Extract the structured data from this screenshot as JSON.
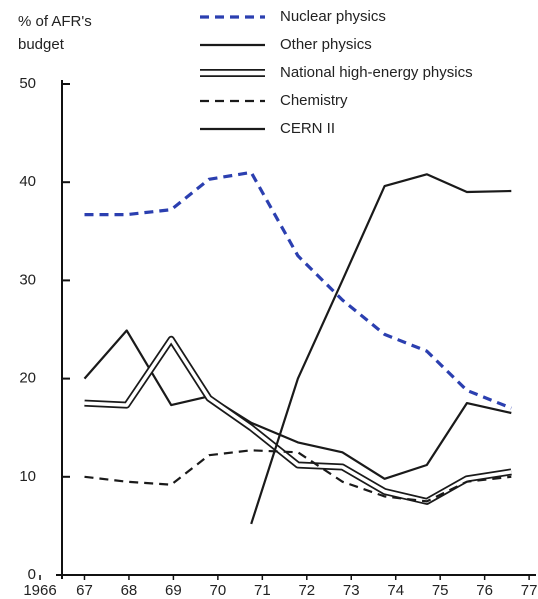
{
  "chart_data": {
    "type": "line",
    "ylabel": [
      "% of AFR's",
      "budget"
    ],
    "x": [
      1967.0,
      1967.95,
      1968.95,
      1969.8,
      1970.75,
      1971.8,
      1972.8,
      1973.75,
      1974.7,
      1975.6,
      1976.6
    ],
    "xlim": [
      1965.1,
      1977.2
    ],
    "xticks": [
      {
        "value": 1966,
        "label": "1966"
      },
      {
        "value": 1967,
        "label": "67"
      },
      {
        "value": 1968,
        "label": "68"
      },
      {
        "value": 1969,
        "label": "69"
      },
      {
        "value": 1970,
        "label": "70"
      },
      {
        "value": 1971,
        "label": "71"
      },
      {
        "value": 1972,
        "label": "72"
      },
      {
        "value": 1973,
        "label": "73"
      },
      {
        "value": 1974,
        "label": "74"
      },
      {
        "value": 1975,
        "label": "75"
      },
      {
        "value": 1976,
        "label": "76"
      },
      {
        "value": 1977,
        "label": "77"
      }
    ],
    "ylim": [
      0,
      50
    ],
    "yticks": [
      0,
      10,
      20,
      30,
      40,
      50
    ],
    "series": [
      {
        "name": "Nuclear physics",
        "color": "#2b3fb0",
        "line_style": "dashed",
        "values": [
          36.7,
          36.7,
          37.2,
          40.3,
          41,
          32.5,
          28,
          24.5,
          22.8,
          18.8,
          17
        ]
      },
      {
        "name": "Other physics",
        "color": "#1a1a1a",
        "line_style": "solid",
        "values": [
          20,
          24.9,
          17.3,
          18.2,
          15.5,
          13.5,
          12.5,
          9.8,
          11.2,
          17.5,
          16.5
        ]
      },
      {
        "name": "National high-energy physics",
        "color": "#1a1a1a",
        "line_style": "double",
        "values": [
          17.5,
          17.3,
          24,
          18,
          15,
          11.2,
          11,
          8.5,
          7.5,
          9.8,
          10.5
        ]
      },
      {
        "name": "Chemistry",
        "color": "#1a1a1a",
        "line_style": "dashed",
        "values": [
          10,
          9.5,
          9.2,
          12.2,
          12.7,
          12.5,
          9.5,
          8,
          7.5,
          9.5,
          10
        ]
      },
      {
        "name": "CERN II",
        "color": "#1a1a1a",
        "line_style": "solid",
        "values": [
          null,
          null,
          null,
          null,
          5.2,
          20,
          30,
          39.6,
          40.8,
          39,
          39.1
        ]
      }
    ]
  }
}
